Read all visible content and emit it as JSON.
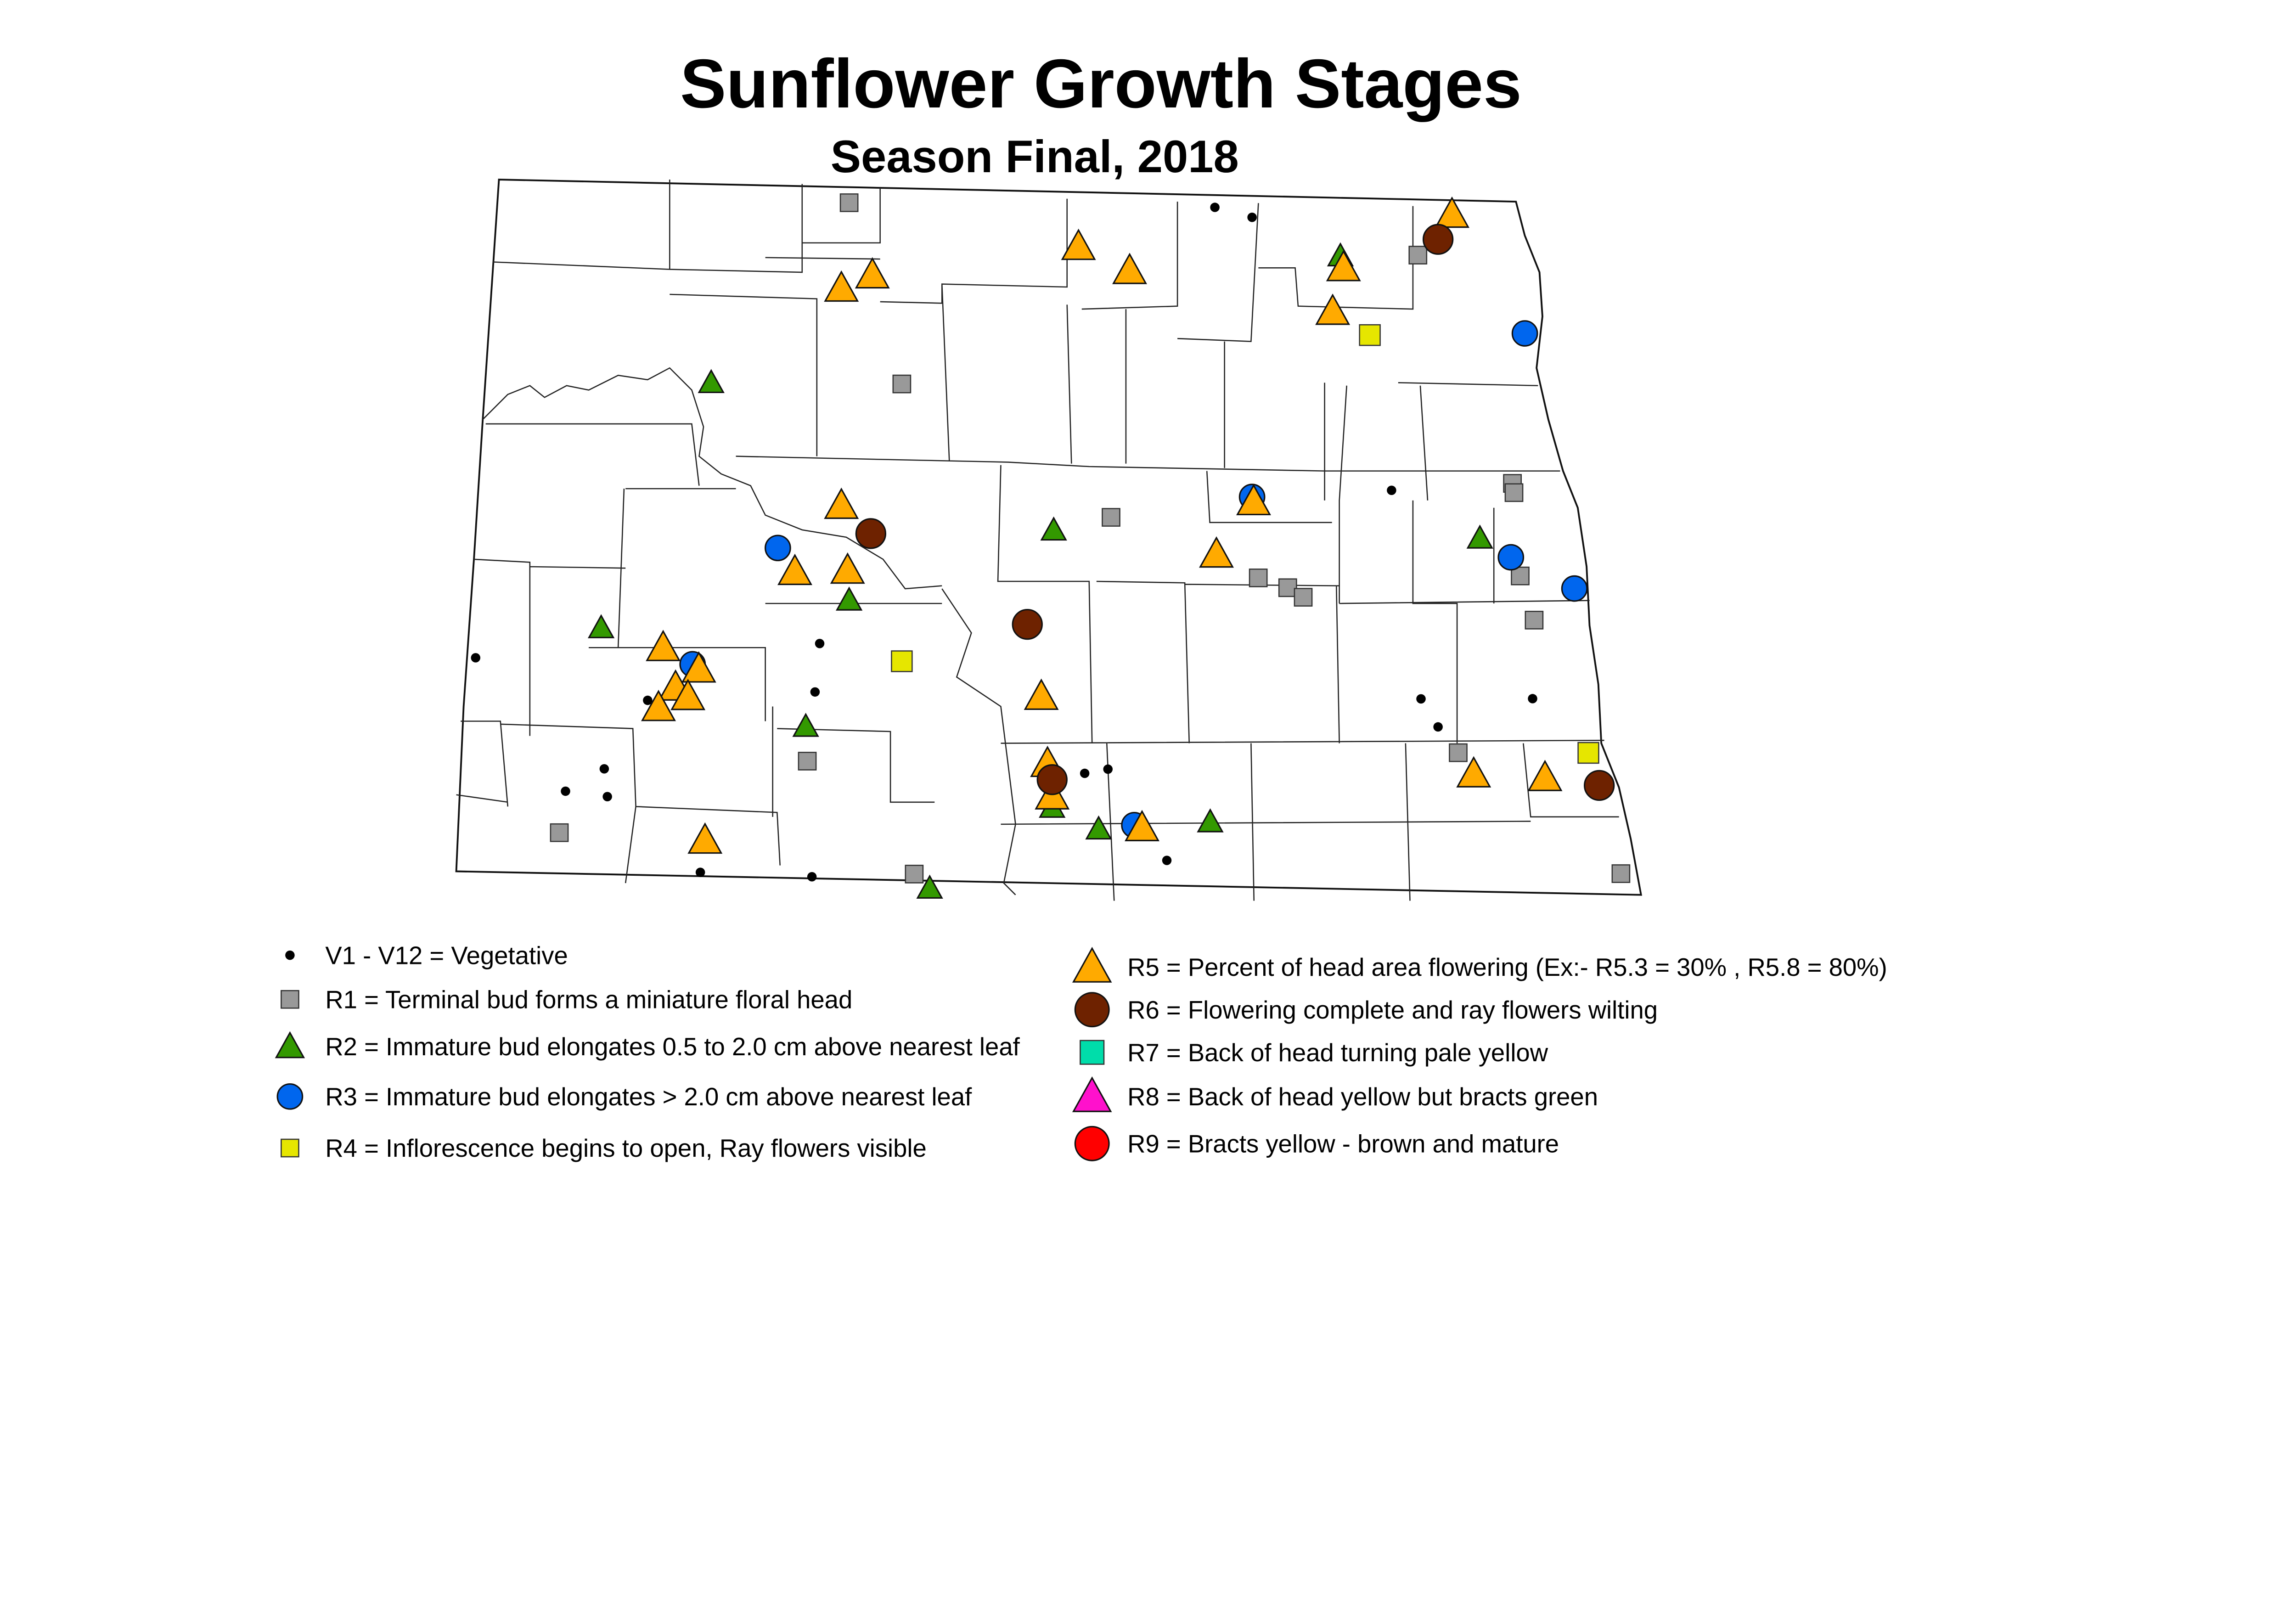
{
  "title": "Sunflower Growth Stages",
  "subtitle": "Season Final, 2018",
  "colors": {
    "V": "#000000",
    "R1": "#999999",
    "R2": "#339900",
    "R3": "#0066EE",
    "R4": "#E6E600",
    "R5": "#FFAA00",
    "R6": "#6E2200",
    "R7": "#00DDAA",
    "R8": "#FF11CC",
    "R9": "#FF0000"
  },
  "legend": [
    {
      "stage": "V",
      "symbol": "dot",
      "label": "V1 - V12 = Vegetative"
    },
    {
      "stage": "R1",
      "symbol": "square",
      "label": "R1 = Terminal bud forms a miniature floral head"
    },
    {
      "stage": "R2",
      "symbol": "triangle",
      "label": "R2 = Immature bud elongates 0.5 to 2.0 cm above nearest leaf"
    },
    {
      "stage": "R3",
      "symbol": "circle",
      "label": "R3 = Immature bud elongates > 2.0 cm above nearest leaf"
    },
    {
      "stage": "R4",
      "symbol": "square",
      "label": "R4 = Inflorescence begins to open, Ray flowers visible"
    },
    {
      "stage": "R5",
      "symbol": "triangle",
      "label": "R5 = Percent of head area flowering (Ex:- R5.3 = 30% , R5.8 = 80%)"
    },
    {
      "stage": "R6",
      "symbol": "circle",
      "label": "R6 = Flowering complete and ray flowers wilting"
    },
    {
      "stage": "R7",
      "symbol": "square",
      "label": "R7 = Back of head turning pale yellow"
    },
    {
      "stage": "R8",
      "symbol": "triangle",
      "label": "R8 = Back of head yellow but bracts green"
    },
    {
      "stage": "R9",
      "symbol": "circle",
      "label": "R9 = Bracts yellow - brown and mature"
    }
  ],
  "observations": {
    "V": [
      [
        -99.25,
        48.96
      ],
      [
        -99.01,
        48.92
      ],
      [
        -98.11,
        47.75
      ],
      [
        -101.8,
        47.04
      ],
      [
        -101.83,
        46.83
      ],
      [
        -102.91,
        46.78
      ],
      [
        -104.02,
        46.95
      ],
      [
        -103.19,
        46.48
      ],
      [
        -103.44,
        46.38
      ],
      [
        -103.17,
        46.36
      ],
      [
        -97.92,
        46.85
      ],
      [
        -97.81,
        46.73
      ],
      [
        -97.2,
        46.86
      ],
      [
        -100.09,
        46.5
      ],
      [
        -99.94,
        46.52
      ],
      [
        -99.56,
        46.13
      ],
      [
        -102.57,
        46.04
      ],
      [
        -101.85,
        46.03
      ]
    ],
    "R1": [
      [
        -101.61,
        48.95
      ],
      [
        -101.27,
        48.17
      ],
      [
        -97.94,
        48.77
      ],
      [
        -99.92,
        47.61
      ],
      [
        -98.97,
        47.36
      ],
      [
        -98.78,
        47.32
      ],
      [
        -98.68,
        47.28
      ],
      [
        -97.33,
        47.79
      ],
      [
        -97.32,
        47.75
      ],
      [
        -97.28,
        47.39
      ],
      [
        -97.19,
        47.2
      ],
      [
        -101.88,
        46.53
      ],
      [
        -97.68,
        46.62
      ],
      [
        -103.48,
        46.2
      ],
      [
        -101.19,
        46.05
      ],
      [
        -96.63,
        46.11
      ]
    ],
    "R2": [
      [
        -102.5,
        48.16
      ],
      [
        -98.44,
        48.76
      ],
      [
        -100.29,
        47.55
      ],
      [
        -101.61,
        47.23
      ],
      [
        -103.21,
        47.09
      ],
      [
        -97.54,
        47.55
      ],
      [
        -101.89,
        46.68
      ],
      [
        -100.3,
        46.35
      ],
      [
        -100.0,
        46.26
      ],
      [
        -99.28,
        46.3
      ],
      [
        -101.09,
        45.99
      ]
    ],
    "R3": [
      [
        -97.25,
        48.44
      ],
      [
        -99.01,
        47.71
      ],
      [
        -102.07,
        47.45
      ],
      [
        -102.62,
        46.94
      ],
      [
        -97.34,
        47.47
      ],
      [
        -96.93,
        47.34
      ],
      [
        -99.77,
        46.28
      ]
    ],
    "R4": [
      [
        -98.25,
        48.42
      ],
      [
        -101.27,
        46.97
      ],
      [
        -96.84,
        46.63
      ]
    ],
    "R5": [
      [
        -97.72,
        48.95
      ],
      [
        -100.13,
        48.78
      ],
      [
        -99.8,
        48.68
      ],
      [
        -98.42,
        48.71
      ],
      [
        -101.46,
        48.64
      ],
      [
        -101.66,
        48.58
      ],
      [
        -98.49,
        48.52
      ],
      [
        -101.66,
        47.64
      ],
      [
        -99.0,
        47.69
      ],
      [
        -101.96,
        47.35
      ],
      [
        -101.62,
        47.36
      ],
      [
        -99.24,
        47.46
      ],
      [
        -102.81,
        47.01
      ],
      [
        -102.58,
        46.92
      ],
      [
        -102.73,
        46.84
      ],
      [
        -102.65,
        46.8
      ],
      [
        -102.84,
        46.75
      ],
      [
        -100.37,
        46.83
      ],
      [
        -100.33,
        46.54
      ],
      [
        -100.3,
        46.4
      ],
      [
        -97.58,
        46.53
      ],
      [
        -97.12,
        46.52
      ],
      [
        -99.72,
        46.27
      ],
      [
        -102.54,
        46.18
      ]
    ],
    "R6": [
      [
        -97.81,
        48.84
      ],
      [
        -101.47,
        47.52
      ],
      [
        -100.46,
        47.14
      ],
      [
        -100.3,
        46.47
      ],
      [
        -96.77,
        46.49
      ]
    ],
    "R7": [],
    "R8": [],
    "R9": []
  }
}
